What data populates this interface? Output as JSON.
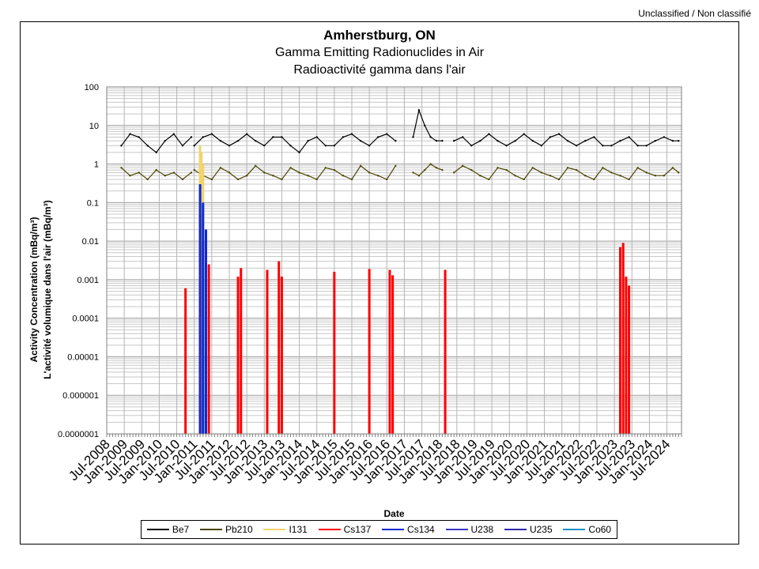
{
  "header": {
    "classification": "Unclassified / Non classifié"
  },
  "chart_data": {
    "type": "line",
    "title": "Amherstburg, ON",
    "subtitle_en": "Gamma Emitting Radionuclides in Air",
    "subtitle_fr": "Radioactivité gamma dans l'air",
    "xlabel": "Date",
    "ylabel_en": "Activity Concentration  (mBq/m³)",
    "ylabel_fr": "L'activité volumique dans l'air (mBq/m³)",
    "yscale": "log",
    "ylim": [
      1e-07,
      100
    ],
    "y_ticks": [
      "100",
      "10",
      "1",
      "0.1",
      "0.01",
      "0.001",
      "0.0001",
      "0.00001",
      "0.000001",
      "0.0000001"
    ],
    "x_range": [
      "2008-07",
      "2024-12"
    ],
    "x_ticks": [
      "Jul-2008",
      "Jan-2009",
      "Jul-2009",
      "Jan-2010",
      "Jul-2010",
      "Jan-2011",
      "Jul-2011",
      "Jan-2012",
      "Jul-2012",
      "Jan-2013",
      "Jul-2013",
      "Jan-2014",
      "Jul-2014",
      "Jan-2015",
      "Jul-2015",
      "Jan-2016",
      "Jul-2016",
      "Jan-2017",
      "Jul-2017",
      "Jan-2018",
      "Jul-2018",
      "Jan-2019",
      "Jul-2019",
      "Jan-2020",
      "Jul-2020",
      "Jan-2021",
      "Jul-2021",
      "Jan-2022",
      "Jul-2022",
      "Jan-2023",
      "Jul-2023",
      "Jan-2024",
      "Jul-2024"
    ],
    "grid": true,
    "legend_position": "bottom",
    "series": [
      {
        "name": "Be7",
        "color": "#000000",
        "style": "line",
        "segments": [
          {
            "x": [
              "2008-12",
              "2009-03",
              "2009-06",
              "2009-09",
              "2009-12",
              "2010-03",
              "2010-06",
              "2010-09",
              "2010-12"
            ],
            "y": [
              3,
              6,
              5,
              3,
              2,
              4,
              6,
              3,
              5
            ]
          },
          {
            "x": [
              "2011-01",
              "2011-04",
              "2011-07",
              "2011-10",
              "2012-01",
              "2012-04",
              "2012-07",
              "2012-10",
              "2013-01",
              "2013-04",
              "2013-07",
              "2013-10",
              "2014-01",
              "2014-04",
              "2014-07",
              "2014-10",
              "2015-01",
              "2015-04",
              "2015-07",
              "2015-10",
              "2016-01",
              "2016-04",
              "2016-07",
              "2016-10"
            ],
            "y": [
              3,
              5,
              6,
              4,
              3,
              4,
              6,
              4,
              3,
              5,
              5,
              3,
              2,
              4,
              5,
              3,
              3,
              5,
              6,
              4,
              3,
              5,
              6,
              4
            ]
          },
          {
            "x": [
              "2017-04",
              "2017-06",
              "2017-08",
              "2017-10",
              "2017-12",
              "2018-02"
            ],
            "y": [
              5,
              25,
              10,
              5,
              4,
              4
            ]
          },
          {
            "x": [
              "2018-06",
              "2018-09",
              "2018-12",
              "2019-03",
              "2019-06",
              "2019-09",
              "2019-12",
              "2020-03",
              "2020-06",
              "2020-09",
              "2020-12",
              "2021-03",
              "2021-06",
              "2021-09",
              "2021-12",
              "2022-03",
              "2022-06",
              "2022-09",
              "2022-12",
              "2023-03",
              "2023-06",
              "2023-09",
              "2023-12",
              "2024-03",
              "2024-06",
              "2024-09",
              "2024-11"
            ],
            "y": [
              4,
              5,
              3,
              4,
              6,
              4,
              3,
              4,
              6,
              4,
              3,
              5,
              6,
              4,
              3,
              4,
              5,
              3,
              3,
              4,
              5,
              3,
              3,
              4,
              5,
              4,
              4
            ]
          }
        ]
      },
      {
        "name": "Pb210",
        "color": "#4a4500",
        "style": "line",
        "segments": [
          {
            "x": [
              "2008-12",
              "2009-03",
              "2009-06",
              "2009-09",
              "2009-12",
              "2010-03",
              "2010-06",
              "2010-09",
              "2010-12"
            ],
            "y": [
              0.8,
              0.5,
              0.6,
              0.4,
              0.7,
              0.5,
              0.6,
              0.4,
              0.6
            ]
          },
          {
            "x": [
              "2011-01",
              "2011-04",
              "2011-07",
              "2011-10",
              "2012-01",
              "2012-04",
              "2012-07",
              "2012-10",
              "2013-01",
              "2013-04",
              "2013-07",
              "2013-10",
              "2014-01",
              "2014-04",
              "2014-07",
              "2014-10",
              "2015-01",
              "2015-04",
              "2015-07",
              "2015-10",
              "2016-01",
              "2016-04",
              "2016-07",
              "2016-10"
            ],
            "y": [
              0.7,
              0.5,
              0.4,
              0.8,
              0.6,
              0.4,
              0.5,
              0.9,
              0.6,
              0.5,
              0.4,
              0.8,
              0.6,
              0.5,
              0.4,
              0.8,
              0.7,
              0.5,
              0.4,
              0.9,
              0.6,
              0.5,
              0.4,
              0.9
            ]
          },
          {
            "x": [
              "2017-04",
              "2017-06",
              "2017-08",
              "2017-10",
              "2017-12",
              "2018-02"
            ],
            "y": [
              0.6,
              0.5,
              0.7,
              1.0,
              0.8,
              0.7
            ]
          },
          {
            "x": [
              "2018-06",
              "2018-09",
              "2018-12",
              "2019-03",
              "2019-06",
              "2019-09",
              "2019-12",
              "2020-03",
              "2020-06",
              "2020-09",
              "2020-12",
              "2021-03",
              "2021-06",
              "2021-09",
              "2021-12",
              "2022-03",
              "2022-06",
              "2022-09",
              "2022-12",
              "2023-03",
              "2023-06",
              "2023-09",
              "2023-12",
              "2024-03",
              "2024-06",
              "2024-09",
              "2024-11"
            ],
            "y": [
              0.6,
              0.9,
              0.7,
              0.5,
              0.4,
              0.8,
              0.7,
              0.5,
              0.4,
              0.8,
              0.6,
              0.5,
              0.4,
              0.8,
              0.7,
              0.5,
              0.4,
              0.8,
              0.6,
              0.5,
              0.4,
              0.8,
              0.6,
              0.5,
              0.5,
              0.8,
              0.6
            ]
          }
        ]
      },
      {
        "name": "I131",
        "color": "#f2d46b",
        "style": "bar",
        "points": [
          {
            "x": "2011-03",
            "y": 3
          },
          {
            "x": "2011-03-15",
            "y": 2
          },
          {
            "x": "2011-04",
            "y": 1
          }
        ]
      },
      {
        "name": "Cs137",
        "color": "#ff0000",
        "style": "bar",
        "points": [
          {
            "x": "2010-10",
            "y": 0.0006
          },
          {
            "x": "2011-03",
            "y": 0.05
          },
          {
            "x": "2011-04",
            "y": 0.01
          },
          {
            "x": "2011-06",
            "y": 0.0025
          },
          {
            "x": "2012-04",
            "y": 0.0012
          },
          {
            "x": "2012-05",
            "y": 0.002
          },
          {
            "x": "2013-02",
            "y": 0.0018
          },
          {
            "x": "2013-06",
            "y": 0.003
          },
          {
            "x": "2013-07",
            "y": 0.0012
          },
          {
            "x": "2015-01",
            "y": 0.0016
          },
          {
            "x": "2016-01",
            "y": 0.0019
          },
          {
            "x": "2016-08",
            "y": 0.0018
          },
          {
            "x": "2016-09",
            "y": 0.0013
          },
          {
            "x": "2018-03",
            "y": 0.0018
          },
          {
            "x": "2023-03",
            "y": 0.007
          },
          {
            "x": "2023-04",
            "y": 0.009
          },
          {
            "x": "2023-05",
            "y": 0.0012
          },
          {
            "x": "2023-06",
            "y": 0.0007
          }
        ]
      },
      {
        "name": "Cs134",
        "color": "#0a2ad6",
        "style": "bar",
        "points": [
          {
            "x": "2011-03",
            "y": 0.3
          },
          {
            "x": "2011-04",
            "y": 0.1
          },
          {
            "x": "2011-05",
            "y": 0.02
          }
        ]
      },
      {
        "name": "U238",
        "color": "#3a36c4",
        "style": "bar",
        "points": []
      },
      {
        "name": "U235",
        "color": "#2f2aa8",
        "style": "bar",
        "points": []
      },
      {
        "name": "Co60",
        "color": "#1b8fc4",
        "style": "bar",
        "points": []
      }
    ]
  }
}
